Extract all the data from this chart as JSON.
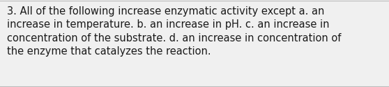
{
  "lines": [
    "3. All of the following increase enzymatic activity except a. an",
    "increase in temperature. b. an increase in pH. c. an increase in",
    "concentration of the substrate. d. an increase in concentration of",
    "the enzyme that catalyzes the reaction."
  ],
  "background_color": "#f0f0f0",
  "border_color": "#bbbbbb",
  "text_color": "#1a1a1a",
  "font_size": 10.5,
  "fig_width": 5.58,
  "fig_height": 1.26,
  "dpi": 100
}
